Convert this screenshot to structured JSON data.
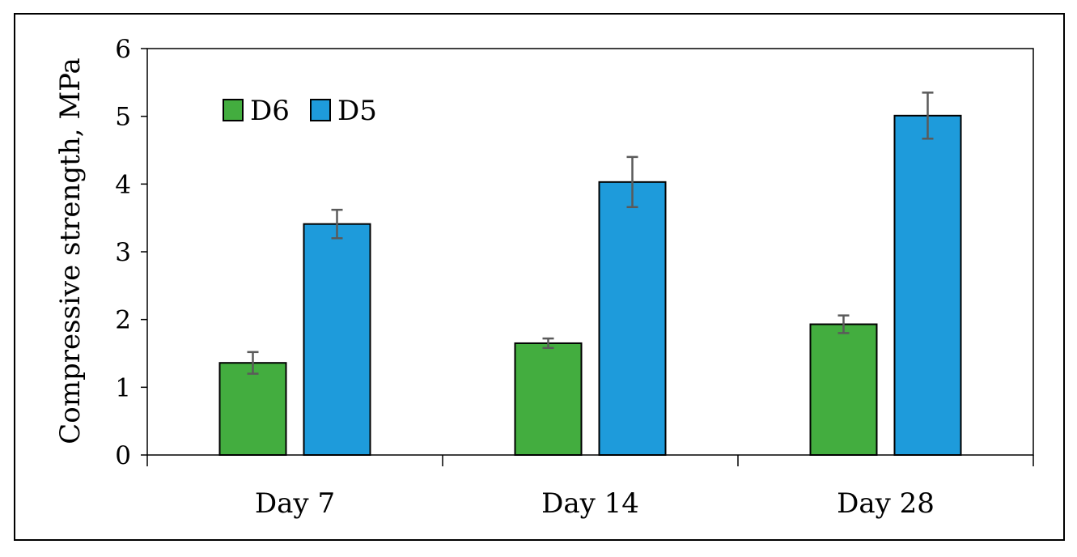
{
  "chart_data": {
    "type": "bar",
    "title": "",
    "xlabel": "",
    "ylabel": "Compressive strength, MPa",
    "categories": [
      "Day 7",
      "Day 14",
      "Day 28"
    ],
    "ylim": [
      0,
      6
    ],
    "yticks": [
      0,
      1,
      2,
      3,
      4,
      5,
      6
    ],
    "grid": false,
    "legend_position": "top-left",
    "series": [
      {
        "name": "D6",
        "color": "#43ad3f",
        "values": [
          1.36,
          1.65,
          1.93
        ],
        "errors": [
          0.16,
          0.07,
          0.13
        ]
      },
      {
        "name": "D5",
        "color": "#1e9bdb",
        "values": [
          3.41,
          4.03,
          5.01
        ],
        "errors": [
          0.21,
          0.37,
          0.34
        ]
      }
    ],
    "error_bar_color": "#5a5a5a"
  }
}
